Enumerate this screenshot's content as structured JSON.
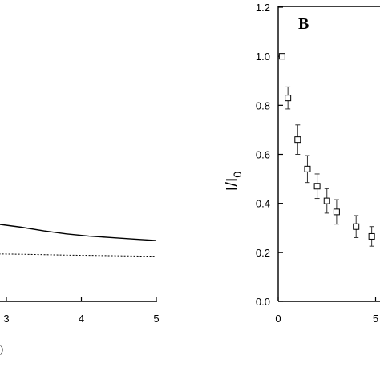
{
  "chart_data": [
    {
      "type": "line",
      "panel": "A",
      "x_ticks": [
        3,
        4,
        5
      ],
      "xlim": [
        2.9,
        5
      ],
      "ylim": [
        0,
        1
      ],
      "series": [
        {
          "style": "solid",
          "x": [
            2.9,
            3.2,
            3.5,
            3.8,
            4.1,
            4.4,
            4.7,
            5.0
          ],
          "y": [
            0.52,
            0.5,
            0.475,
            0.455,
            0.44,
            0.43,
            0.42,
            0.41
          ]
        },
        {
          "style": "dotted",
          "x": [
            2.9,
            3.2,
            3.5,
            3.8,
            4.1,
            4.4,
            4.7,
            5.0
          ],
          "y": [
            0.32,
            0.318,
            0.315,
            0.312,
            0.31,
            0.308,
            0.306,
            0.305
          ]
        }
      ]
    },
    {
      "type": "scatter",
      "panel": "B",
      "title": "B",
      "ylabel_main": "I/I",
      "ylabel_sub": "0",
      "xlim": [
        0,
        5
      ],
      "ylim": [
        0,
        1.2
      ],
      "x_ticks": [
        0,
        5
      ],
      "y_ticks": [
        "0.0",
        "0.2",
        "0.4",
        "0.6",
        "0.8",
        "1.0",
        "1.2"
      ],
      "points": [
        {
          "x": 0.2,
          "y": 1.0,
          "err": 0.0
        },
        {
          "x": 0.5,
          "y": 0.83,
          "err": 0.045
        },
        {
          "x": 1.0,
          "y": 0.66,
          "err": 0.06
        },
        {
          "x": 1.5,
          "y": 0.54,
          "err": 0.055
        },
        {
          "x": 2.0,
          "y": 0.47,
          "err": 0.05
        },
        {
          "x": 2.5,
          "y": 0.41,
          "err": 0.05
        },
        {
          "x": 3.0,
          "y": 0.365,
          "err": 0.05
        },
        {
          "x": 4.0,
          "y": 0.305,
          "err": 0.045
        },
        {
          "x": 4.8,
          "y": 0.265,
          "err": 0.04
        }
      ]
    }
  ]
}
